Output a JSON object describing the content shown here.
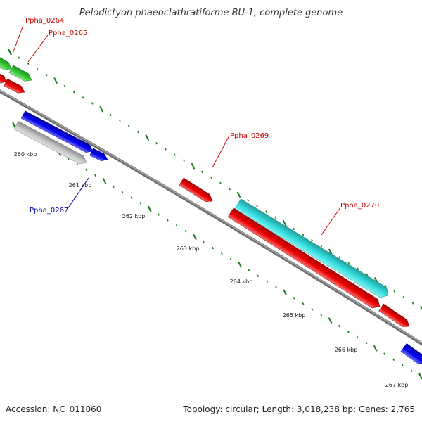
{
  "title": "Pelodictyon phaeoclathratiforme BU-1, complete genome",
  "footer": {
    "accession": "Accession: NC_011060",
    "summary": "Topology: circular; Length: 3,018,238 bp; Genes: 2,765"
  },
  "colors": {
    "backbone": "#808080",
    "tick": "#1a7a1a",
    "label_red": "#cc0000",
    "label_blue": "#0000aa"
  },
  "kbp_labels": [
    "260 kbp",
    "261 kbp",
    "262 kbp",
    "263 kbp",
    "264 kbp",
    "265 kbp",
    "266 kbp",
    "267 kbp"
  ],
  "features": [
    {
      "id": "Ppha_0264",
      "color": "#33cc33",
      "label": "Ppha_0264",
      "label_color": "red"
    },
    {
      "id": "Ppha_0265",
      "color": "#33cc33",
      "label": "Ppha_0265",
      "label_color": "red"
    },
    {
      "id": "red-top-a",
      "color": "#ee0000",
      "label": ""
    },
    {
      "id": "red-top-b",
      "color": "#ee0000",
      "label": ""
    },
    {
      "id": "blue-upper",
      "color": "#0000ee",
      "label": ""
    },
    {
      "id": "blue-small",
      "color": "#0000ee",
      "label": ""
    },
    {
      "id": "Ppha_0267",
      "color": "#c8c8c8",
      "label": "Ppha_0267",
      "label_color": "blue"
    },
    {
      "id": "Ppha_0269",
      "color": "#ee0000",
      "label": "Ppha_0269",
      "label_color": "red"
    },
    {
      "id": "Ppha_0270",
      "color": "#33e0e0",
      "label": "Ppha_0270",
      "label_color": "red"
    },
    {
      "id": "red-long",
      "color": "#ee0000",
      "label": ""
    },
    {
      "id": "red-right",
      "color": "#ee0000",
      "label": ""
    },
    {
      "id": "blue-right",
      "color": "#0000ee",
      "label": ""
    }
  ]
}
